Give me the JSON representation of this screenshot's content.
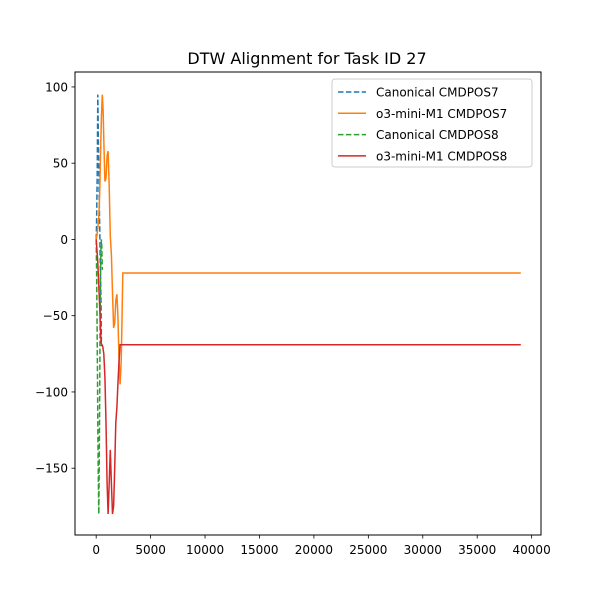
{
  "chart_data": {
    "type": "line",
    "title": "DTW Alignment for Task ID 27",
    "xlabel": "",
    "ylabel": "",
    "xlim": [
      -1945,
      40860
    ],
    "ylim": [
      -193.8,
      109.8
    ],
    "xticks": [
      0,
      5000,
      10000,
      15000,
      20000,
      25000,
      30000,
      35000,
      40000
    ],
    "yticks": [
      100,
      50,
      0,
      -50,
      -100,
      -150
    ],
    "grid": false,
    "legend_position": "top-right",
    "series": [
      {
        "name": "Canonical CMDPOS7",
        "color": "#1f77b4",
        "dash": "dashed",
        "x": [
          0,
          30,
          60,
          90,
          120,
          150,
          180,
          210,
          240,
          270,
          300,
          330,
          360,
          390,
          420,
          450,
          480
        ],
        "y": [
          0,
          8,
          22,
          42,
          68,
          95,
          80,
          60,
          45,
          30,
          20,
          5,
          -10,
          -20,
          -30,
          -45,
          -70
        ]
      },
      {
        "name": "o3-mini-M1 CMDPOS7",
        "color": "#ff7f0e",
        "dash": "solid",
        "x": [
          0,
          80,
          160,
          240,
          320,
          400,
          480,
          560,
          640,
          720,
          800,
          900,
          1000,
          1100,
          1200,
          1300,
          1400,
          1500,
          1600,
          1700,
          1800,
          1900,
          2000,
          2100,
          2200,
          2300,
          2350,
          2450,
          2600,
          39000
        ],
        "y": [
          0,
          3,
          8,
          15,
          30,
          55,
          80,
          95,
          85,
          60,
          38,
          40,
          55,
          58,
          35,
          2,
          -10,
          -35,
          -58,
          -55,
          -40,
          -36,
          -50,
          -78,
          -95,
          -80,
          -60,
          -22,
          -22,
          -22
        ]
      },
      {
        "name": "Canonical CMDPOS8",
        "color": "#2ca02c",
        "dash": "dashed",
        "x": [
          0,
          40,
          80,
          120,
          160,
          200,
          240,
          280,
          320,
          360,
          400,
          440,
          480,
          520,
          560
        ],
        "y": [
          0,
          -20,
          -50,
          -90,
          -130,
          -160,
          -180,
          -150,
          -100,
          -55,
          -25,
          -5,
          0,
          -5,
          -20
        ]
      },
      {
        "name": "o3-mini-M1 CMDPOS8",
        "color": "#d62728",
        "dash": "solid",
        "x": [
          0,
          150,
          300,
          450,
          600,
          700,
          800,
          900,
          1000,
          1100,
          1200,
          1300,
          1400,
          1500,
          1600,
          1700,
          1800,
          1900,
          2000,
          2100,
          2200,
          2400,
          39000
        ],
        "y": [
          0,
          -15,
          -40,
          -68,
          -70,
          -75,
          -90,
          -120,
          -160,
          -180,
          -160,
          -138,
          -160,
          -180,
          -175,
          -150,
          -120,
          -110,
          -95,
          -80,
          -69,
          -69,
          -69
        ]
      }
    ]
  }
}
